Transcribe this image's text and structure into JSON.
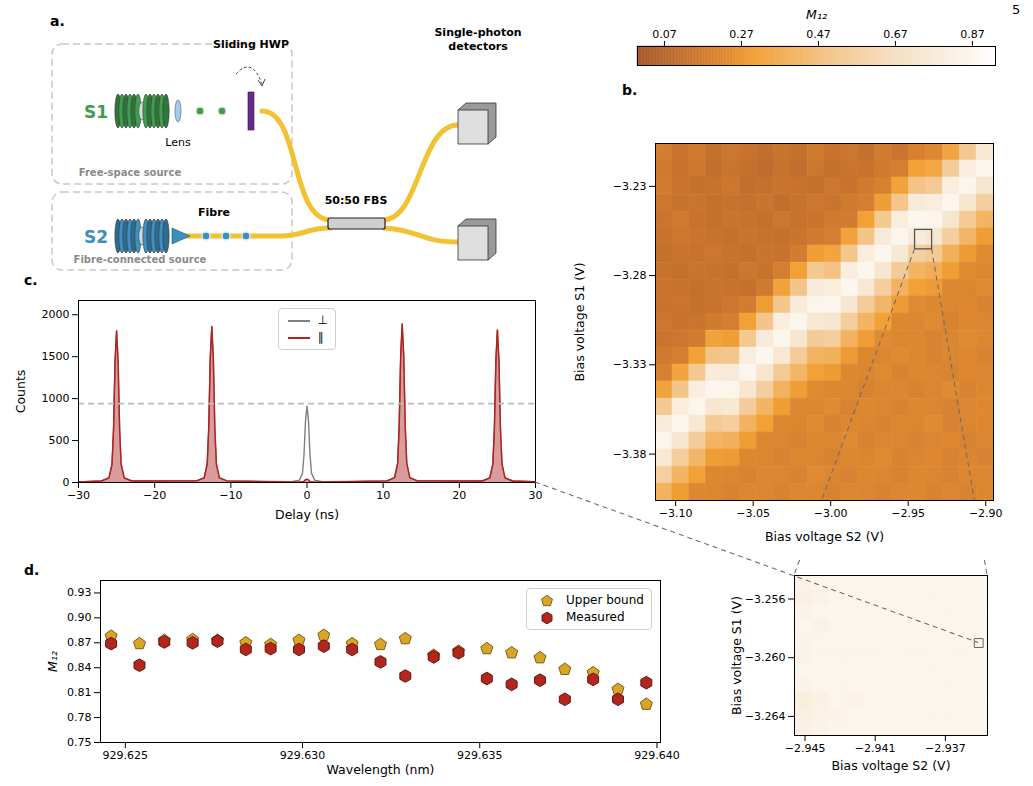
{
  "page_number": "5",
  "diagram": {
    "label": "a.",
    "sources": [
      {
        "name": "S1",
        "color": "#3f9d4f",
        "description": "Free-space source"
      },
      {
        "name": "S2",
        "color": "#3d8fbf",
        "description": "Fibre-connected source"
      }
    ],
    "components": {
      "lens": "Lens",
      "hwp": "Sliding HWP",
      "fibre": "Fibre",
      "beamsplitter": "50:50 FBS",
      "detectors": "Single-photon detectors"
    }
  },
  "chart_data": [
    {
      "panel": "b.",
      "type": "heatmap",
      "x_label": "Bias voltage S2 (V)",
      "y_label": "Bias voltage S1 (V)",
      "xlim": [
        -3.113,
        -2.895
      ],
      "ylim": [
        -3.406,
        -3.206
      ],
      "xticks": [
        {
          "value": -3.1,
          "label": "−3.10"
        },
        {
          "value": -3.05,
          "label": "−3.05"
        },
        {
          "value": -3.0,
          "label": "−3.00"
        },
        {
          "value": -2.95,
          "label": "−2.95"
        },
        {
          "value": -2.9,
          "label": "−2.90"
        }
      ],
      "yticks": [
        {
          "value": -3.23,
          "label": "−3.23"
        },
        {
          "value": -3.28,
          "label": "−3.28"
        },
        {
          "value": -3.33,
          "label": "−3.33"
        },
        {
          "value": -3.38,
          "label": "−3.38"
        }
      ],
      "colorbar": {
        "label": "M₁₂",
        "range": [
          0.0,
          0.93
        ],
        "ticks": [
          0.07,
          0.27,
          0.47,
          0.67,
          0.87
        ]
      },
      "x": [
        -3.1075,
        -3.0966,
        -3.0857,
        -3.0748,
        -3.0639,
        -3.053,
        -3.0421,
        -3.0312,
        -3.0203,
        -3.0094,
        -2.9985,
        -2.9876,
        -2.9767,
        -2.9658,
        -2.9549,
        -2.944,
        -2.9331,
        -2.9222,
        -2.9113,
        -2.9004
      ],
      "y": [
        -3.2108,
        -3.2203,
        -3.2298,
        -3.2394,
        -3.2489,
        -3.2584,
        -3.2679,
        -3.2775,
        -3.287,
        -3.2965,
        -3.306,
        -3.3156,
        -3.3251,
        -3.3346,
        -3.3441,
        -3.3537,
        -3.3632,
        -3.3727,
        -3.3822,
        -3.3918,
        -3.4013
      ],
      "cells": [
        [
          0.18,
          0.14,
          0.16,
          0.12,
          0.15,
          0.13,
          0.11,
          0.14,
          0.12,
          0.16,
          0.13,
          0.15,
          0.12,
          0.17,
          0.14,
          0.19,
          0.22,
          0.33,
          0.52,
          0.76
        ],
        [
          0.16,
          0.13,
          0.15,
          0.11,
          0.14,
          0.12,
          0.1,
          0.13,
          0.11,
          0.15,
          0.12,
          0.14,
          0.13,
          0.16,
          0.18,
          0.31,
          0.34,
          0.55,
          0.8,
          0.87
        ],
        [
          0.17,
          0.14,
          0.12,
          0.13,
          0.15,
          0.11,
          0.12,
          0.14,
          0.13,
          0.12,
          0.15,
          0.13,
          0.16,
          0.19,
          0.32,
          0.49,
          0.53,
          0.79,
          0.86,
          0.73
        ],
        [
          0.15,
          0.13,
          0.14,
          0.12,
          0.13,
          0.12,
          0.14,
          0.11,
          0.13,
          0.15,
          0.14,
          0.16,
          0.18,
          0.3,
          0.51,
          0.77,
          0.8,
          0.87,
          0.74,
          0.56
        ],
        [
          0.14,
          0.16,
          0.13,
          0.12,
          0.14,
          0.13,
          0.12,
          0.15,
          0.13,
          0.14,
          0.16,
          0.17,
          0.31,
          0.52,
          0.79,
          0.87,
          0.86,
          0.73,
          0.54,
          0.41
        ],
        [
          0.13,
          0.15,
          0.14,
          0.13,
          0.12,
          0.14,
          0.13,
          0.12,
          0.14,
          0.16,
          0.18,
          0.32,
          0.49,
          0.77,
          0.86,
          0.78,
          0.74,
          0.56,
          0.42,
          0.3
        ],
        [
          0.12,
          0.14,
          0.13,
          0.15,
          0.13,
          0.12,
          0.14,
          0.13,
          0.17,
          0.3,
          0.33,
          0.51,
          0.79,
          0.87,
          0.76,
          0.57,
          0.53,
          0.39,
          0.29,
          0.23
        ],
        [
          0.13,
          0.12,
          0.14,
          0.13,
          0.12,
          0.15,
          0.13,
          0.18,
          0.31,
          0.52,
          0.48,
          0.8,
          0.86,
          0.74,
          0.54,
          0.41,
          0.38,
          0.3,
          0.23,
          0.21
        ],
        [
          0.14,
          0.13,
          0.12,
          0.14,
          0.13,
          0.12,
          0.16,
          0.32,
          0.5,
          0.77,
          0.79,
          0.87,
          0.75,
          0.56,
          0.4,
          0.31,
          0.29,
          0.22,
          0.21,
          0.23
        ],
        [
          0.13,
          0.14,
          0.12,
          0.13,
          0.15,
          0.17,
          0.3,
          0.51,
          0.78,
          0.86,
          0.87,
          0.74,
          0.55,
          0.42,
          0.29,
          0.23,
          0.22,
          0.21,
          0.22,
          0.2
        ],
        [
          0.15,
          0.13,
          0.14,
          0.16,
          0.18,
          0.31,
          0.5,
          0.79,
          0.86,
          0.75,
          0.73,
          0.56,
          0.41,
          0.31,
          0.22,
          0.21,
          0.23,
          0.2,
          0.22,
          0.21
        ],
        [
          0.14,
          0.15,
          0.17,
          0.32,
          0.3,
          0.52,
          0.77,
          0.86,
          0.74,
          0.54,
          0.56,
          0.4,
          0.3,
          0.23,
          0.21,
          0.22,
          0.2,
          0.21,
          0.23,
          0.22
        ],
        [
          0.16,
          0.18,
          0.31,
          0.49,
          0.51,
          0.79,
          0.87,
          0.75,
          0.55,
          0.41,
          0.39,
          0.29,
          0.22,
          0.21,
          0.23,
          0.22,
          0.2,
          0.21,
          0.22,
          0.2
        ],
        [
          0.19,
          0.33,
          0.52,
          0.78,
          0.77,
          0.86,
          0.73,
          0.54,
          0.42,
          0.31,
          0.29,
          0.22,
          0.21,
          0.23,
          0.2,
          0.22,
          0.21,
          0.2,
          0.22,
          0.21
        ],
        [
          0.32,
          0.5,
          0.8,
          0.87,
          0.86,
          0.74,
          0.56,
          0.4,
          0.3,
          0.23,
          0.21,
          0.22,
          0.2,
          0.21,
          0.22,
          0.2,
          0.21,
          0.23,
          0.2,
          0.22
        ],
        [
          0.52,
          0.79,
          0.86,
          0.74,
          0.76,
          0.55,
          0.41,
          0.3,
          0.22,
          0.21,
          0.23,
          0.2,
          0.22,
          0.21,
          0.2,
          0.22,
          0.21,
          0.2,
          0.21,
          0.22
        ],
        [
          0.78,
          0.87,
          0.75,
          0.54,
          0.56,
          0.4,
          0.31,
          0.22,
          0.21,
          0.23,
          0.2,
          0.22,
          0.21,
          0.2,
          0.22,
          0.21,
          0.23,
          0.2,
          0.21,
          0.22
        ],
        [
          0.86,
          0.74,
          0.55,
          0.41,
          0.39,
          0.3,
          0.22,
          0.21,
          0.2,
          0.22,
          0.21,
          0.23,
          0.2,
          0.21,
          0.22,
          0.2,
          0.21,
          0.22,
          0.2,
          0.21
        ],
        [
          0.76,
          0.56,
          0.42,
          0.3,
          0.29,
          0.22,
          0.21,
          0.2,
          0.22,
          0.21,
          0.2,
          0.22,
          0.21,
          0.23,
          0.2,
          0.21,
          0.22,
          0.2,
          0.21,
          0.2
        ],
        [
          0.57,
          0.41,
          0.31,
          0.22,
          0.21,
          0.2,
          0.22,
          0.21,
          0.2,
          0.23,
          0.21,
          0.2,
          0.22,
          0.21,
          0.2,
          0.22,
          0.21,
          0.2,
          0.22,
          0.21
        ],
        [
          0.4,
          0.3,
          0.22,
          0.21,
          0.2,
          0.22,
          0.21,
          0.2,
          0.22,
          0.21,
          0.2,
          0.22,
          0.21,
          0.2,
          0.21,
          0.22,
          0.2,
          0.21,
          0.2,
          0.22
        ]
      ]
    },
    {
      "type": "heatmap",
      "x_label": "Bias voltage S2 (V)",
      "y_label": "Bias voltage S1 (V)",
      "xlim": [
        -2.9456,
        -2.9346
      ],
      "ylim": [
        -3.2653,
        -3.2544
      ],
      "xticks": [
        {
          "value": -2.945,
          "label": "−2.945"
        },
        {
          "value": -2.941,
          "label": "−2.941"
        },
        {
          "value": -2.937,
          "label": "−2.937"
        }
      ],
      "yticks": [
        {
          "value": -3.256,
          "label": "−3.256"
        },
        {
          "value": -3.26,
          "label": "−3.260"
        },
        {
          "value": -3.264,
          "label": "−3.264"
        }
      ],
      "selected": {
        "x": -2.9351,
        "y": -3.259
      },
      "x": [
        -2.9451,
        -2.9441,
        -2.9431,
        -2.9421,
        -2.9411,
        -2.9401,
        -2.9391,
        -2.9381,
        -2.9371,
        -2.9361,
        -2.9351
      ],
      "y": [
        -3.2549,
        -3.2559,
        -3.2569,
        -3.2579,
        -3.2589,
        -3.2599,
        -3.2609,
        -3.2619,
        -3.2629,
        -3.2639,
        -3.2649
      ],
      "cells": [
        [
          0.84,
          0.86,
          0.86,
          0.87,
          0.86,
          0.87,
          0.86,
          0.86,
          0.87,
          0.86,
          0.86
        ],
        [
          0.82,
          0.85,
          0.86,
          0.86,
          0.87,
          0.86,
          0.87,
          0.86,
          0.86,
          0.87,
          0.86
        ],
        [
          0.85,
          0.86,
          0.87,
          0.86,
          0.86,
          0.87,
          0.86,
          0.87,
          0.86,
          0.86,
          0.87
        ],
        [
          0.86,
          0.84,
          0.86,
          0.87,
          0.86,
          0.86,
          0.87,
          0.86,
          0.87,
          0.86,
          0.86
        ],
        [
          0.85,
          0.86,
          0.87,
          0.86,
          0.87,
          0.86,
          0.86,
          0.87,
          0.86,
          0.87,
          0.86
        ],
        [
          0.84,
          0.86,
          0.86,
          0.86,
          0.86,
          0.87,
          0.86,
          0.86,
          0.87,
          0.86,
          0.87
        ],
        [
          0.86,
          0.87,
          0.86,
          0.87,
          0.86,
          0.86,
          0.87,
          0.86,
          0.86,
          0.87,
          0.86
        ],
        [
          0.85,
          0.86,
          0.86,
          0.86,
          0.87,
          0.86,
          0.86,
          0.87,
          0.86,
          0.86,
          0.86
        ],
        [
          0.8,
          0.83,
          0.86,
          0.85,
          0.86,
          0.87,
          0.86,
          0.86,
          0.87,
          0.86,
          0.87
        ],
        [
          0.81,
          0.84,
          0.85,
          0.86,
          0.86,
          0.86,
          0.87,
          0.86,
          0.86,
          0.86,
          0.86
        ],
        [
          0.83,
          0.85,
          0.86,
          0.86,
          0.87,
          0.86,
          0.86,
          0.87,
          0.86,
          0.87,
          0.86
        ]
      ]
    },
    {
      "panel": "c.",
      "type": "line",
      "x_label": "Delay (ns)",
      "y_label": "Counts",
      "xlim": [
        -30,
        30
      ],
      "ylim": [
        0,
        2170
      ],
      "xticks": [
        {
          "value": -30,
          "label": "−30"
        },
        {
          "value": -20,
          "label": "−20"
        },
        {
          "value": -10,
          "label": "−10"
        },
        0,
        10,
        20,
        30
      ],
      "yticks": [
        0,
        500,
        1000,
        1500,
        2000
      ],
      "legend": "upper center",
      "reference_line": {
        "value": 940,
        "line_style": "dashed"
      },
      "x": [
        -30,
        -27,
        -26,
        -25.6,
        -25.4,
        -25.2,
        -25,
        -24.8,
        -24.6,
        -24.4,
        -24,
        -23,
        -14.5,
        -13.5,
        -13.1,
        -12.9,
        -12.7,
        -12.5,
        -12.3,
        -12.1,
        -11.9,
        -11.5,
        -10.5,
        -2,
        -1,
        -0.6,
        -0.4,
        -0.2,
        0,
        0.2,
        0.4,
        0.6,
        1,
        2,
        10.5,
        11.5,
        11.9,
        12.1,
        12.3,
        12.5,
        12.7,
        12.9,
        13.1,
        13.5,
        14.5,
        23,
        24,
        24.4,
        24.6,
        24.8,
        25,
        25.2,
        25.4,
        25.6,
        26,
        27,
        30
      ],
      "series": [
        {
          "name": "⊥",
          "color": "#808080",
          "type": "line",
          "values": [
            8,
            18,
            54,
            217,
            634,
            1448,
            1810,
            1448,
            634,
            217,
            54,
            18,
            19,
            56,
            223,
            651,
            1488,
            1860,
            1488,
            651,
            223,
            56,
            19,
            9,
            27,
            109,
            319,
            728,
            910,
            728,
            319,
            109,
            27,
            9,
            19,
            57,
            227,
            662,
            1512,
            1890,
            1512,
            662,
            227,
            57,
            19,
            18,
            55,
            218,
            637,
            1456,
            1820,
            1456,
            637,
            218,
            55,
            18,
            8
          ]
        },
        {
          "name": "∥",
          "color": "#b22222",
          "type": "area",
          "values": [
            8,
            18,
            54,
            217,
            634,
            1448,
            1810,
            1448,
            634,
            217,
            54,
            18,
            19,
            56,
            223,
            651,
            1488,
            1860,
            1488,
            651,
            223,
            56,
            19,
            5,
            6,
            8,
            14,
            32,
            40,
            32,
            14,
            8,
            6,
            5,
            19,
            57,
            227,
            662,
            1512,
            1890,
            1512,
            662,
            227,
            57,
            19,
            18,
            55,
            218,
            637,
            1456,
            1820,
            1456,
            637,
            218,
            55,
            18,
            8
          ]
        }
      ]
    },
    {
      "panel": "d.",
      "type": "scatter",
      "x_label": "Wavelength (nm)",
      "y_label": "M₁₂",
      "xlim": [
        929.6243,
        929.6401
      ],
      "ylim": [
        0.75,
        0.945
      ],
      "xticks": [
        929.625,
        {
          "value": 929.63,
          "label": "929.630"
        },
        929.635,
        {
          "value": 929.64,
          "label": "929.640"
        }
      ],
      "yticks": [
        0.75,
        0.78,
        0.81,
        0.84,
        0.87,
        {
          "value": 0.9,
          "label": "0.90"
        },
        0.93
      ],
      "legend": "upper right",
      "x": [
        929.6246,
        929.6254,
        929.6261,
        929.6269,
        929.6276,
        929.6284,
        929.6291,
        929.6299,
        929.6306,
        929.6314,
        929.6322,
        929.6329,
        929.6337,
        929.6344,
        929.6352,
        929.6359,
        929.6367,
        929.6374,
        929.6382,
        929.6389,
        929.6397
      ],
      "series": [
        {
          "name": "Upper bound",
          "color": "#d9a527",
          "marker": "pentagon",
          "values": [
            0.878,
            0.869,
            0.873,
            0.874,
            0.873,
            0.87,
            0.868,
            0.873,
            0.879,
            0.869,
            0.868,
            0.875,
            0.855,
            0.86,
            0.863,
            0.858,
            0.852,
            0.838,
            0.834,
            0.814,
            0.796
          ]
        },
        {
          "name": "Measured",
          "color": "#b3261e",
          "marker": "hexagon",
          "values": [
            0.869,
            0.843,
            0.871,
            0.87,
            0.872,
            0.862,
            0.863,
            0.862,
            0.866,
            0.862,
            0.847,
            0.83,
            0.853,
            0.858,
            0.827,
            0.82,
            0.825,
            0.802,
            0.826,
            0.802,
            0.822
          ]
        }
      ]
    }
  ]
}
